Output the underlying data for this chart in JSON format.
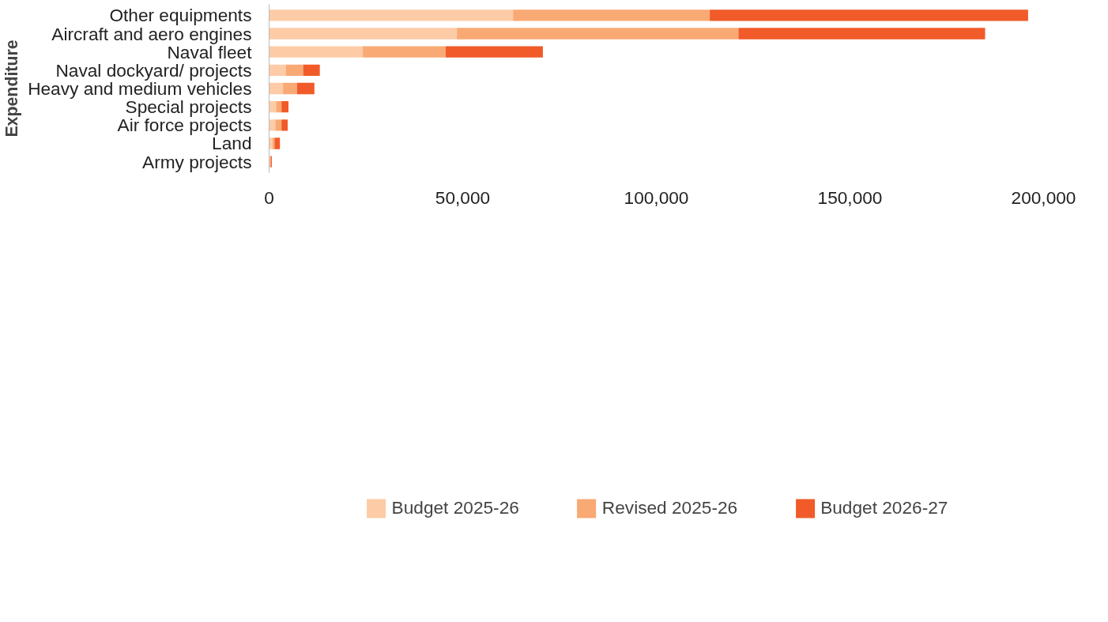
{
  "chart_data": {
    "type": "bar",
    "orientation": "horizontal",
    "stacked": true,
    "ylabel": "Expenditure",
    "categories": [
      "Other equipments",
      "Aircraft and aero engines",
      "Naval fleet",
      "Naval dockyard/ projects",
      "Heavy and medium vehicles",
      "Special projects",
      "Air force projects",
      "Land",
      "Army projects"
    ],
    "series": [
      {
        "name": "Budget 2025-26",
        "color": "#fdcba6",
        "values": [
          63000,
          48500,
          24200,
          4300,
          3600,
          1800,
          1600,
          900,
          200
        ]
      },
      {
        "name": "Revised 2025-26",
        "color": "#f9a974",
        "values": [
          50800,
          72700,
          21400,
          4500,
          3600,
          1400,
          1600,
          500,
          200
        ]
      },
      {
        "name": "Budget 2026-27",
        "color": "#f15a29",
        "values": [
          82200,
          63700,
          25100,
          4300,
          4500,
          1800,
          1600,
          1400,
          300
        ]
      }
    ],
    "xlim": [
      0,
      200000
    ],
    "xticks": [
      {
        "value": 0,
        "label": "0"
      },
      {
        "value": 50000,
        "label": "50,000"
      },
      {
        "value": 100000,
        "label": "100,000"
      },
      {
        "value": 150000,
        "label": "150,000"
      },
      {
        "value": 200000,
        "label": "200,000"
      }
    ],
    "grid": false,
    "legend": "bottom"
  }
}
